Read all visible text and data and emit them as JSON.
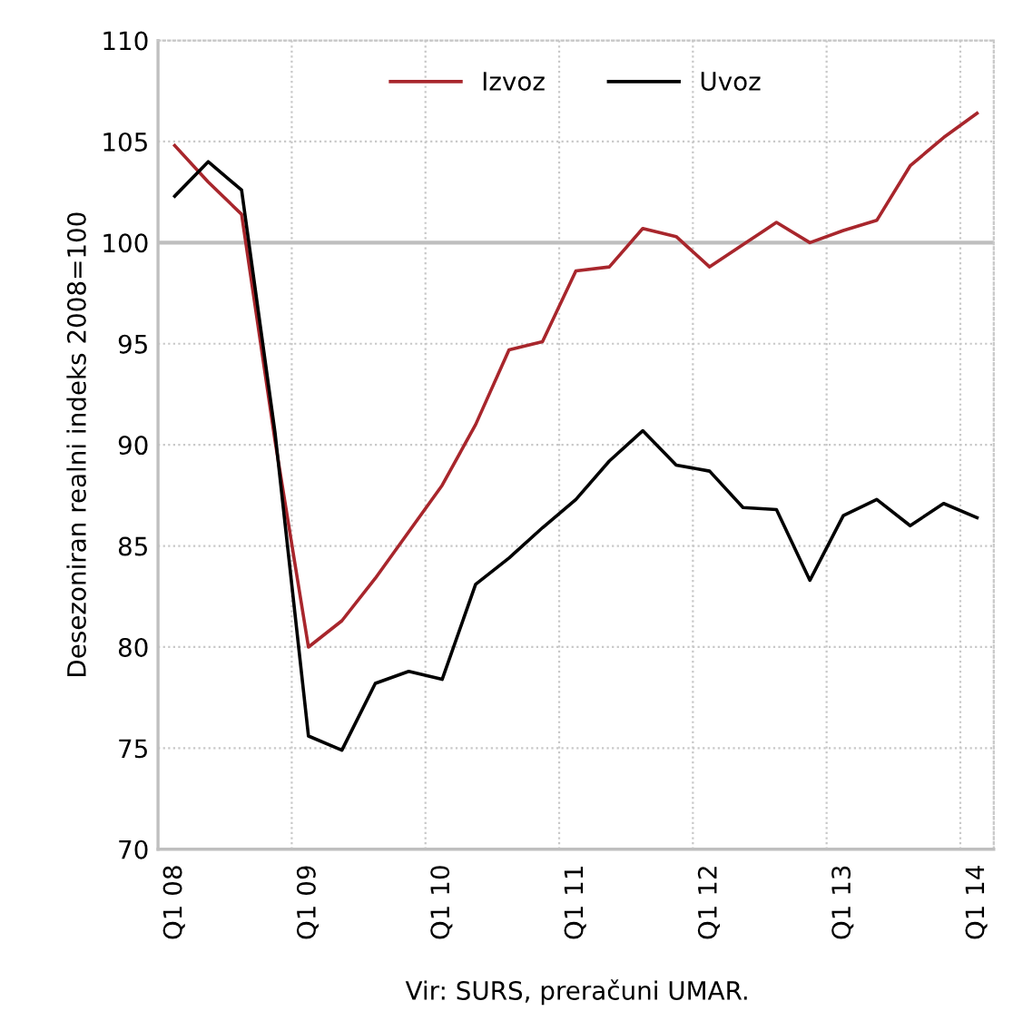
{
  "chart_data": {
    "type": "line",
    "ylabel": "Desezoniran realni indeks 2008=100",
    "categories": [
      "Q1 08",
      null,
      null,
      null,
      "Q1 09",
      null,
      null,
      null,
      "Q1 10",
      null,
      null,
      null,
      "Q1 11",
      null,
      null,
      null,
      "Q1 12",
      null,
      null,
      null,
      "Q1 13",
      null,
      null,
      null,
      "Q1 14"
    ],
    "series": [
      {
        "name": "Izvoz",
        "color": "#a8262c",
        "values": [
          104.8,
          103.0,
          101.4,
          90.2,
          80.0,
          81.3,
          83.4,
          85.7,
          88.0,
          91.0,
          94.7,
          95.1,
          98.6,
          98.8,
          100.7,
          100.3,
          98.8,
          99.9,
          101.0,
          100.0,
          100.6,
          101.1,
          103.8,
          105.2,
          106.4
        ]
      },
      {
        "name": "Uvoz",
        "color": "#000000",
        "values": [
          102.3,
          104.0,
          102.6,
          90.6,
          75.6,
          74.9,
          78.2,
          78.8,
          78.4,
          83.1,
          84.4,
          85.9,
          87.3,
          89.2,
          90.7,
          89.0,
          88.7,
          86.9,
          86.8,
          83.3,
          86.5,
          87.3,
          86.0,
          87.1,
          86.4
        ]
      }
    ],
    "ylim": [
      70,
      110
    ],
    "yticks": [
      70,
      75,
      80,
      85,
      90,
      95,
      100,
      105,
      110
    ],
    "ref_lines": [
      {
        "axis": "y",
        "value": 100,
        "color": "#bfbfbf"
      }
    ],
    "grid": true,
    "legend": "top",
    "marker": "none",
    "line_style": "solid",
    "annotations": [
      "Vir: SURS, preračuni UMAR."
    ]
  }
}
